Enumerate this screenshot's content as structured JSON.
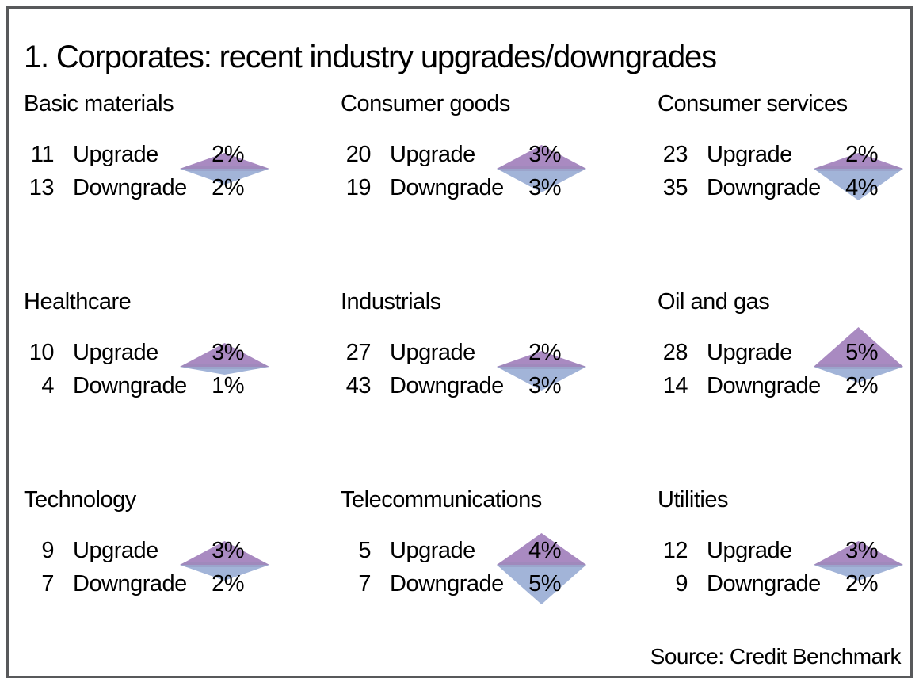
{
  "chart_data": {
    "type": "bar",
    "variant": "paired-triangle-diamond-markers",
    "title": "1. Corporates: recent industry upgrades/downgrades",
    "source": "Source: Credit Benchmark",
    "row_labels": {
      "upgrade": "Upgrade",
      "downgrade": "Downgrade"
    },
    "pct_suffix": "%",
    "colors": {
      "upgrade_triangle": "#a98ac1",
      "downgrade_triangle": "#a2b4d8",
      "frame_border": "#58595b",
      "text": "#000000"
    },
    "panels": [
      {
        "industry": "Basic materials",
        "upgrade": {
          "count": 11,
          "pct": 2
        },
        "downgrade": {
          "count": 13,
          "pct": 2
        }
      },
      {
        "industry": "Consumer goods",
        "upgrade": {
          "count": 20,
          "pct": 3
        },
        "downgrade": {
          "count": 19,
          "pct": 3
        }
      },
      {
        "industry": "Consumer services",
        "upgrade": {
          "count": 23,
          "pct": 2
        },
        "downgrade": {
          "count": 35,
          "pct": 4
        }
      },
      {
        "industry": "Healthcare",
        "upgrade": {
          "count": 10,
          "pct": 3
        },
        "downgrade": {
          "count": 4,
          "pct": 1
        }
      },
      {
        "industry": "Industrials",
        "upgrade": {
          "count": 27,
          "pct": 2
        },
        "downgrade": {
          "count": 43,
          "pct": 3
        }
      },
      {
        "industry": "Oil and gas",
        "upgrade": {
          "count": 28,
          "pct": 5
        },
        "downgrade": {
          "count": 14,
          "pct": 2
        }
      },
      {
        "industry": "Technology",
        "upgrade": {
          "count": 9,
          "pct": 3
        },
        "downgrade": {
          "count": 7,
          "pct": 2
        }
      },
      {
        "industry": "Telecommunications",
        "upgrade": {
          "count": 5,
          "pct": 4
        },
        "downgrade": {
          "count": 7,
          "pct": 5
        }
      },
      {
        "industry": "Utilities",
        "upgrade": {
          "count": 12,
          "pct": 3
        },
        "downgrade": {
          "count": 9,
          "pct": 2
        }
      }
    ]
  }
}
